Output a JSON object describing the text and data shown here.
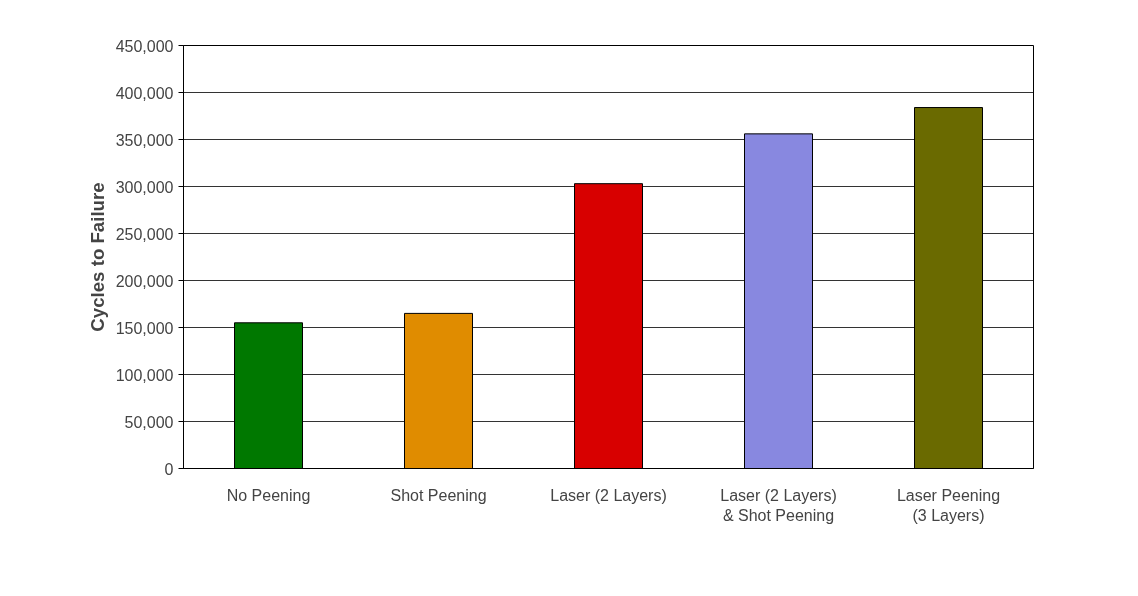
{
  "chart_data": {
    "type": "bar",
    "ylabel": "Cycles to Failure",
    "categories": [
      "No Peening",
      "Shot Peening",
      "Laser (2 Layers)",
      "Laser (2 Layers)\n& Shot Peening",
      "Laser Peening\n(3 Layers)"
    ],
    "values": [
      155000,
      165000,
      303000,
      356000,
      384000
    ],
    "colors": [
      "#007800",
      "#e08c00",
      "#d80000",
      "#8888e0",
      "#6a6a00"
    ],
    "ylim": [
      0,
      450000
    ],
    "yticks": [
      {
        "value": 0,
        "label": "0"
      },
      {
        "value": 50000,
        "label": "50,000"
      },
      {
        "value": 100000,
        "label": "100,000"
      },
      {
        "value": 150000,
        "label": "150,000"
      },
      {
        "value": 200000,
        "label": "200,000"
      },
      {
        "value": 250000,
        "label": "250,000"
      },
      {
        "value": 300000,
        "label": "300,000"
      },
      {
        "value": 350000,
        "label": "350,000"
      },
      {
        "value": 400000,
        "label": "400,000"
      },
      {
        "value": 450000,
        "label": "450,000"
      }
    ],
    "grid": "y"
  }
}
